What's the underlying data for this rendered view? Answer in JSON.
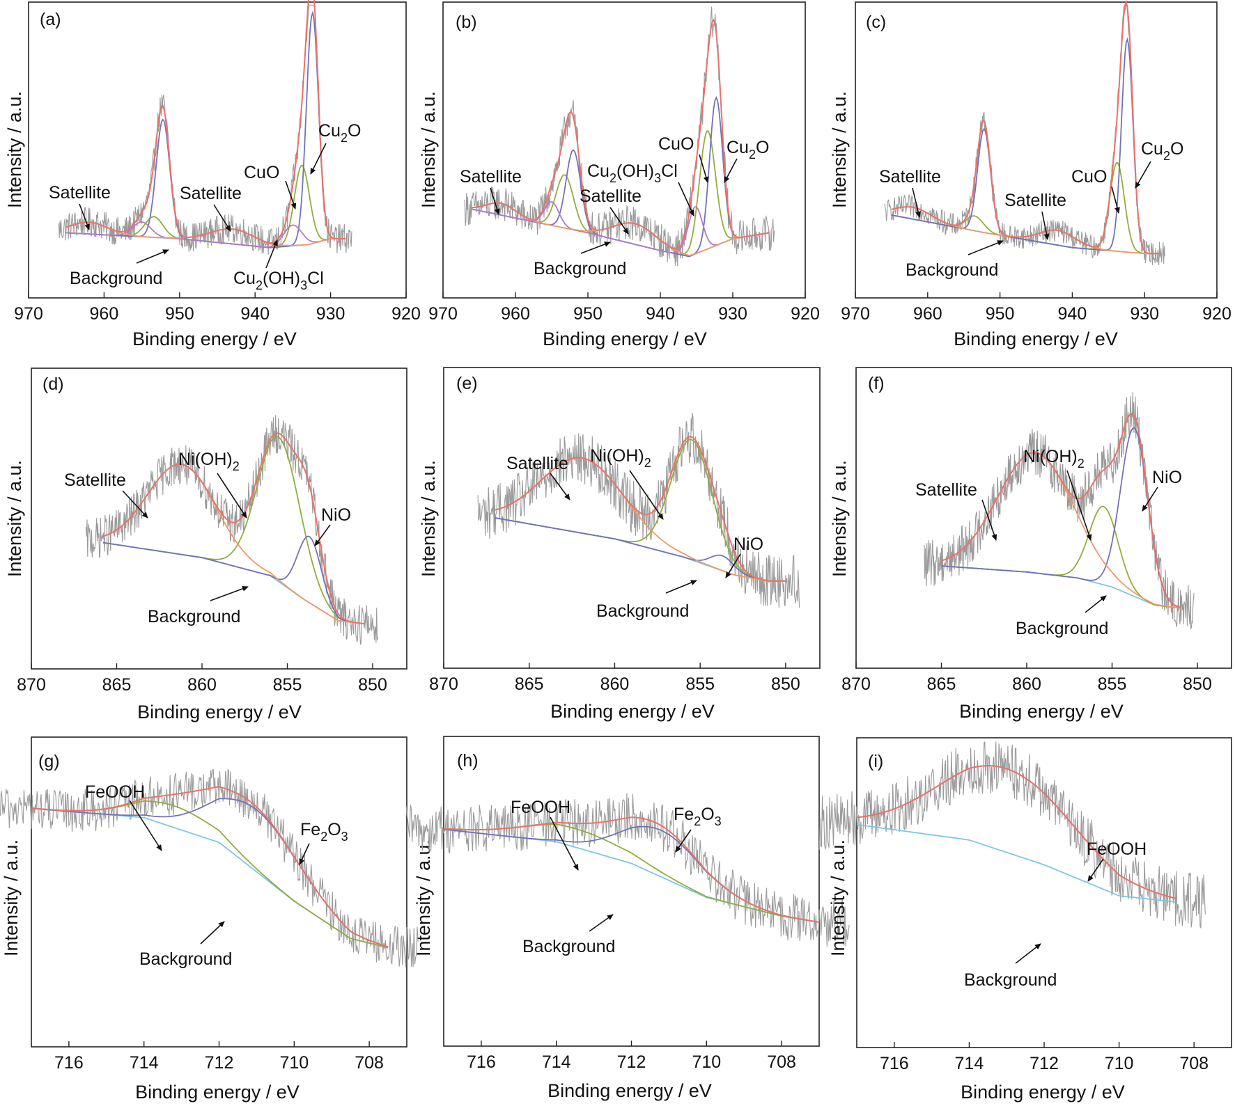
{
  "figure": {
    "y_axis_label": "Intensity / a.u.",
    "x_axis_label": "Binding energy / eV"
  },
  "chart_data": [
    {
      "panel": "(a)",
      "type": "line",
      "xlim": [
        970,
        920
      ],
      "xlabel": "Binding energy / eV",
      "ylabel": "Intensity / a.u.",
      "x_ticks": [
        970,
        960,
        950,
        940,
        930,
        920
      ],
      "noise": 0.05,
      "range": [
        965,
        928
      ],
      "ylim": [
        0,
        1
      ],
      "background": [
        [
          965,
          0.22
        ],
        [
          950,
          0.2
        ],
        [
          938,
          0.17
        ],
        [
          933,
          0.18
        ],
        [
          930,
          0.2
        ],
        [
          928,
          0.2
        ]
      ],
      "components": [
        {
          "name": "CuO",
          "color": "#8fae3c",
          "peaks": [
            [
              933.8,
              0.27,
              1.0
            ],
            [
              953.4,
              0.07,
              1.2
            ]
          ]
        },
        {
          "name": "Cu2O",
          "color": "#7272b8",
          "peaks": [
            [
              932.4,
              0.78,
              0.8
            ],
            [
              952.2,
              0.4,
              0.9
            ]
          ]
        },
        {
          "name": "Cu2(OH)3Cl",
          "color": "#b07acc",
          "peaks": [
            [
              935.0,
              0.07,
              1.2
            ],
            [
              955.0,
              0.05,
              1.2
            ]
          ]
        },
        {
          "name": "Satellite",
          "color": "#ee9966",
          "peaks": [
            [
              943,
              0.05,
              3.0
            ],
            [
              962,
              0.04,
              2.5
            ]
          ]
        }
      ],
      "annotations": [
        {
          "label": "Satellite",
          "target": [
            962,
            0.27
          ]
        },
        {
          "label": "Satellite",
          "target": [
            944,
            0.27
          ]
        },
        {
          "label": "CuO",
          "target": [
            934,
            0.43
          ]
        },
        {
          "label": "Cu2O",
          "target": [
            932,
            0.62
          ]
        },
        {
          "label": "Background",
          "target": [
            949,
            0.19
          ]
        },
        {
          "label": "Cu2(OH)3Cl",
          "target": [
            936,
            0.2
          ]
        }
      ]
    },
    {
      "panel": "(b)",
      "type": "line",
      "xlim": [
        970,
        920
      ],
      "xlabel": "Binding energy / eV",
      "ylabel": "Intensity / a.u.",
      "x_ticks": [
        970,
        960,
        950,
        940,
        930,
        920
      ],
      "noise": 0.06,
      "range": [
        966,
        925
      ],
      "ylim": [
        0,
        1
      ],
      "background": [
        [
          966,
          0.3
        ],
        [
          950,
          0.22
        ],
        [
          940,
          0.16
        ],
        [
          936,
          0.14
        ],
        [
          930,
          0.2
        ],
        [
          925,
          0.22
        ]
      ],
      "components": [
        {
          "name": "CuO",
          "color": "#8fae3c",
          "peaks": [
            [
              933.5,
              0.4,
              1.1
            ],
            [
              953.2,
              0.18,
              1.2
            ]
          ]
        },
        {
          "name": "Cu2O",
          "color": "#7272b8",
          "peaks": [
            [
              932.3,
              0.5,
              0.9
            ],
            [
              952.0,
              0.27,
              1.0
            ]
          ]
        },
        {
          "name": "Cu2(OH)3Cl",
          "color": "#b07acc",
          "peaks": [
            [
              935.2,
              0.16,
              1.0
            ],
            [
              955.0,
              0.08,
              1.0
            ]
          ]
        },
        {
          "name": "Satellite",
          "color": "#ee9966",
          "peaks": [
            [
              943.5,
              0.07,
              3.0
            ],
            [
              962,
              0.04,
              2.0
            ]
          ]
        }
      ],
      "annotations": [
        {
          "label": "Satellite",
          "target": [
            963,
            0.3
          ]
        },
        {
          "label": "Satellite",
          "target": [
            945,
            0.25
          ]
        },
        {
          "label": "Cu2(OH)3Cl",
          "target": [
            935.5,
            0.3
          ]
        },
        {
          "label": "CuO",
          "target": [
            933.5,
            0.46
          ]
        },
        {
          "label": "Cu2O",
          "target": [
            931.5,
            0.45
          ]
        },
        {
          "label": "Background",
          "target": [
            948,
            0.19
          ]
        }
      ]
    },
    {
      "panel": "(c)",
      "type": "line",
      "xlim": [
        970,
        920
      ],
      "xlabel": "Binding energy / eV",
      "ylabel": "Intensity / a.u.",
      "x_ticks": [
        970,
        960,
        950,
        940,
        930,
        920
      ],
      "noise": 0.04,
      "range": [
        965,
        928
      ],
      "ylim": [
        0,
        1
      ],
      "background": [
        [
          965,
          0.28
        ],
        [
          952,
          0.22
        ],
        [
          940,
          0.17
        ],
        [
          935,
          0.16
        ],
        [
          930,
          0.15
        ],
        [
          928,
          0.15
        ]
      ],
      "components": [
        {
          "name": "CuO",
          "color": "#8fae3c",
          "peaks": [
            [
              933.8,
              0.3,
              1.0
            ],
            [
              953.5,
              0.05,
              1.2
            ]
          ]
        },
        {
          "name": "Cu2O",
          "color": "#7272b8",
          "peaks": [
            [
              932.4,
              0.72,
              0.8
            ],
            [
              952.2,
              0.35,
              0.9
            ]
          ]
        },
        {
          "name": "Satellite",
          "color": "#ee9966",
          "peaks": [
            [
              942,
              0.05,
              2.5
            ],
            [
              962,
              0.04,
              2.5
            ]
          ]
        }
      ],
      "annotations": [
        {
          "label": "Satellite",
          "target": [
            962,
            0.3
          ]
        },
        {
          "label": "Satellite",
          "target": [
            942.5,
            0.24
          ]
        },
        {
          "label": "CuO",
          "target": [
            934,
            0.44
          ]
        },
        {
          "label": "Cu2O",
          "target": [
            931.5,
            0.54
          ]
        },
        {
          "label": "Background",
          "target": [
            950,
            0.21
          ]
        }
      ]
    },
    {
      "panel": "(d)",
      "type": "line",
      "xlim": [
        870,
        848
      ],
      "xlabel": "Binding energy / eV",
      "ylabel": "Intensity / a.u.",
      "x_ticks": [
        870,
        865,
        860,
        855,
        850
      ],
      "noise": 0.07,
      "range": [
        865.8,
        850.5
      ],
      "ylim": [
        0,
        1
      ],
      "background": [
        [
          865.8,
          0.42
        ],
        [
          860,
          0.37
        ],
        [
          856,
          0.31
        ],
        [
          854,
          0.23
        ],
        [
          852,
          0.16
        ],
        [
          850.5,
          0.15
        ]
      ],
      "components": [
        {
          "name": "Ni(OH)2",
          "color": "#8fae3c",
          "peaks": [
            [
              855.5,
              0.48,
              1.25
            ]
          ]
        },
        {
          "name": "NiO",
          "color": "#7272b8",
          "peaks": [
            [
              853.7,
              0.22,
              0.7
            ]
          ]
        },
        {
          "name": "Satellite",
          "color": "#ee9966",
          "peaks": [
            [
              861.2,
              0.3,
              2.0
            ]
          ]
        }
      ],
      "annotations": [
        {
          "label": "Satellite",
          "target": [
            863,
            0.58
          ]
        },
        {
          "label": "Ni(OH)2",
          "target": [
            857,
            0.58
          ]
        },
        {
          "label": "NiO",
          "target": [
            853.2,
            0.5
          ]
        },
        {
          "label": "Background",
          "target": [
            857,
            0.3
          ]
        }
      ]
    },
    {
      "panel": "(e)",
      "type": "line",
      "xlim": [
        870,
        848
      ],
      "xlabel": "Binding energy / eV",
      "ylabel": "Intensity / a.u.",
      "x_ticks": [
        870,
        865,
        860,
        855,
        850
      ],
      "noise": 0.09,
      "range": [
        867,
        850
      ],
      "ylim": [
        0,
        1
      ],
      "background": [
        [
          867,
          0.5
        ],
        [
          860,
          0.43
        ],
        [
          856,
          0.37
        ],
        [
          853,
          0.31
        ],
        [
          851,
          0.29
        ],
        [
          850,
          0.29
        ]
      ],
      "components": [
        {
          "name": "Ni(OH)2",
          "color": "#8fae3c",
          "peaks": [
            [
              855.5,
              0.4,
              1.2
            ]
          ]
        },
        {
          "name": "NiO",
          "color": "#7272b8",
          "peaks": [
            [
              853.7,
              0.05,
              0.7
            ]
          ]
        },
        {
          "name": "Satellite",
          "color": "#ee9966",
          "peaks": [
            [
              861.9,
              0.25,
              2.4
            ]
          ]
        }
      ],
      "annotations": [
        {
          "label": "Satellite",
          "target": [
            864,
            0.62
          ]
        },
        {
          "label": "Ni(OH)2",
          "target": [
            857,
            0.58
          ]
        },
        {
          "label": "NiO",
          "target": [
            853.3,
            0.37
          ]
        },
        {
          "label": "Background",
          "target": [
            855,
            0.37
          ]
        }
      ]
    },
    {
      "panel": "(f)",
      "type": "line",
      "xlim": [
        870,
        848
      ],
      "xlabel": "Binding energy / eV",
      "ylabel": "Intensity / a.u.",
      "x_ticks": [
        870,
        865,
        860,
        855,
        850
      ],
      "noise": 0.08,
      "range": [
        865,
        851
      ],
      "ylim": [
        0,
        1
      ],
      "background": [
        [
          865,
          0.34
        ],
        [
          860,
          0.32
        ],
        [
          857,
          0.3
        ],
        [
          855,
          0.27
        ],
        [
          852.5,
          0.21
        ],
        [
          851,
          0.2
        ]
      ],
      "components": [
        {
          "name": "Ni(OH)2",
          "color": "#8fae3c",
          "peaks": [
            [
              855.5,
              0.26,
              0.85
            ]
          ]
        },
        {
          "name": "NiO",
          "color": "#7272b8",
          "peaks": [
            [
              853.7,
              0.56,
              0.8
            ]
          ]
        },
        {
          "name": "Satellite",
          "color": "#ee9966",
          "peaks": [
            [
              859.5,
              0.4,
              2.2
            ]
          ]
        }
      ],
      "annotations": [
        {
          "label": "Satellite",
          "target": [
            861.8,
            0.5
          ]
        },
        {
          "label": "Ni(OH)2",
          "target": [
            855.3,
            0.5
          ]
        },
        {
          "label": "NiO",
          "target": [
            853.2,
            0.6
          ]
        },
        {
          "label": "Background",
          "target": [
            855.5,
            0.27
          ]
        }
      ]
    },
    {
      "panel": "(g)",
      "type": "line",
      "xlim": [
        717,
        707
      ],
      "xlabel": "Binding energy / eV",
      "ylabel": "Intensity / a.u.",
      "x_ticks": [
        716,
        714,
        712,
        710,
        708
      ],
      "noise": 0.07,
      "range": [
        717,
        707.5
      ],
      "ylim": [
        0,
        1
      ],
      "background": [
        [
          717,
          0.77
        ],
        [
          714,
          0.74
        ],
        [
          712,
          0.66
        ],
        [
          710,
          0.47
        ],
        [
          708.5,
          0.35
        ],
        [
          707.5,
          0.32
        ]
      ],
      "components": [
        {
          "name": "FeOOH",
          "color": "#8fae3c",
          "peaks": [
            [
              713.2,
              0.07,
              1.1
            ]
          ]
        },
        {
          "name": "Fe2O3",
          "color": "#7272b8",
          "peaks": [
            [
              711.0,
              0.2,
              1.2
            ]
          ]
        }
      ],
      "annotations": [
        {
          "label": "FeOOH",
          "target": [
            713.4,
            0.78
          ]
        },
        {
          "label": "Fe2O3",
          "target": [
            710,
            0.65
          ]
        },
        {
          "label": "Background",
          "target": [
            711.8,
            0.6
          ]
        }
      ]
    },
    {
      "panel": "(h)",
      "type": "line",
      "xlim": [
        717,
        707
      ],
      "xlabel": "Binding energy / eV",
      "ylabel": "Intensity / a.u.",
      "x_ticks": [
        716,
        714,
        712,
        710,
        708
      ],
      "noise": 0.08,
      "range": [
        717,
        707
      ],
      "ylim": [
        0,
        1
      ],
      "background": [
        [
          717,
          0.7
        ],
        [
          714,
          0.66
        ],
        [
          712,
          0.59
        ],
        [
          710,
          0.48
        ],
        [
          708,
          0.42
        ],
        [
          707,
          0.4
        ]
      ],
      "components": [
        {
          "name": "FeOOH",
          "color": "#8fae3c",
          "peaks": [
            [
              713.5,
              0.06,
              1.4
            ]
          ]
        },
        {
          "name": "Fe2O3",
          "color": "#7272b8",
          "peaks": [
            [
              711.2,
              0.15,
              1.1
            ]
          ]
        }
      ],
      "annotations": [
        {
          "label": "FeOOH",
          "target": [
            713.2,
            0.7
          ]
        },
        {
          "label": "Fe2O3",
          "target": [
            710.9,
            0.78
          ]
        },
        {
          "label": "Background",
          "target": [
            712,
            0.56
          ]
        }
      ]
    },
    {
      "panel": "(i)",
      "type": "line",
      "xlim": [
        717,
        707
      ],
      "xlabel": "Binding energy / eV",
      "ylabel": "Intensity / a.u.",
      "x_ticks": [
        716,
        714,
        712,
        710,
        708
      ],
      "noise": 0.09,
      "range": [
        717,
        708.5
      ],
      "ylim": [
        0,
        1
      ],
      "background": [
        [
          717,
          0.72
        ],
        [
          714,
          0.67
        ],
        [
          712,
          0.59
        ],
        [
          710,
          0.49
        ],
        [
          708.5,
          0.47
        ]
      ],
      "components": [
        {
          "name": "FeOOH",
          "color": "#7272b8",
          "peaks": [
            [
              713.0,
              0.27,
              1.8
            ]
          ]
        }
      ],
      "annotations": [
        {
          "label": "FeOOH",
          "target": [
            710.8,
            0.75
          ]
        },
        {
          "label": "Background",
          "target": [
            712,
            0.52
          ]
        }
      ]
    }
  ],
  "colors": {
    "raw": "#9a9a9a",
    "envelope": "#e8736a",
    "background": "#7cc6e6",
    "frame": "#222222"
  }
}
